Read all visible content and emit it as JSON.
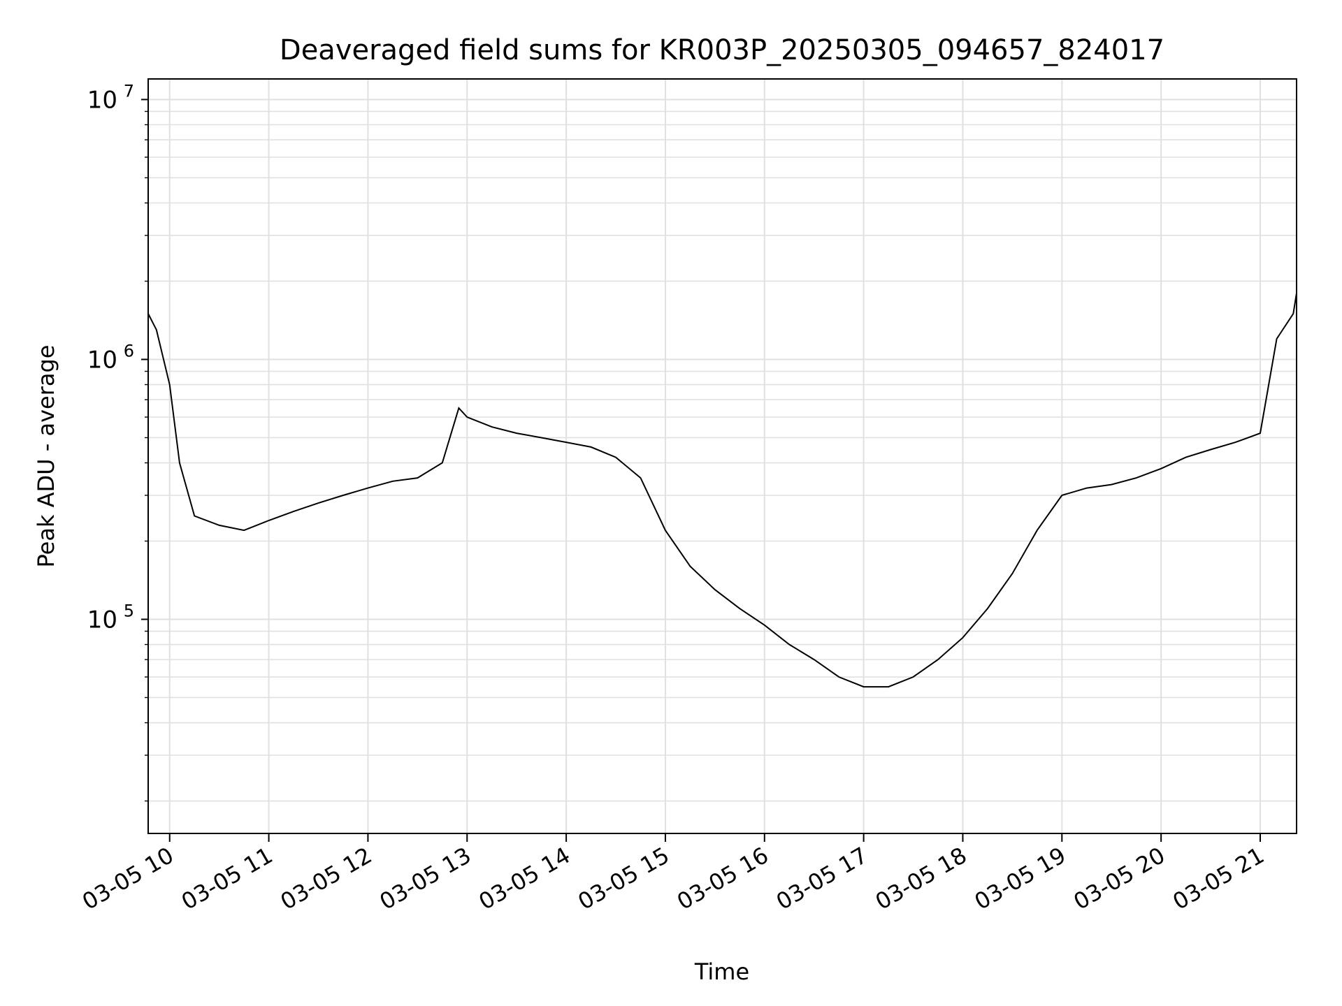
{
  "chart_data": {
    "type": "line",
    "title": "Deaveraged field sums for KR003P_20250305_094657_824017",
    "xlabel": "Time",
    "ylabel": "Peak ADU - average",
    "x_type": "time",
    "x_range": [
      "2025-03-05T09:47",
      "2025-03-05T21:22"
    ],
    "x_ticks": [
      {
        "t": "2025-03-05T10:00",
        "label": "03-05 10"
      },
      {
        "t": "2025-03-05T11:00",
        "label": "03-05 11"
      },
      {
        "t": "2025-03-05T12:00",
        "label": "03-05 12"
      },
      {
        "t": "2025-03-05T13:00",
        "label": "03-05 13"
      },
      {
        "t": "2025-03-05T14:00",
        "label": "03-05 14"
      },
      {
        "t": "2025-03-05T15:00",
        "label": "03-05 15"
      },
      {
        "t": "2025-03-05T16:00",
        "label": "03-05 16"
      },
      {
        "t": "2025-03-05T17:00",
        "label": "03-05 17"
      },
      {
        "t": "2025-03-05T18:00",
        "label": "03-05 18"
      },
      {
        "t": "2025-03-05T19:00",
        "label": "03-05 19"
      },
      {
        "t": "2025-03-05T20:00",
        "label": "03-05 20"
      },
      {
        "t": "2025-03-05T21:00",
        "label": "03-05 21"
      }
    ],
    "y_scale": "log",
    "ylim": [
      15000,
      12000000
    ],
    "y_ticks": [
      {
        "value": 100000,
        "base": "10",
        "exp": "5"
      },
      {
        "value": 1000000,
        "base": "10",
        "exp": "6"
      },
      {
        "value": 10000000,
        "base": "10",
        "exp": "7"
      }
    ],
    "grid": true,
    "series": [
      {
        "color": "#000000",
        "x": [
          "2025-03-05T09:47",
          "2025-03-05T09:52",
          "2025-03-05T10:00",
          "2025-03-05T10:06",
          "2025-03-05T10:15",
          "2025-03-05T10:30",
          "2025-03-05T10:45",
          "2025-03-05T11:00",
          "2025-03-05T11:15",
          "2025-03-05T11:30",
          "2025-03-05T11:45",
          "2025-03-05T12:00",
          "2025-03-05T12:15",
          "2025-03-05T12:30",
          "2025-03-05T12:45",
          "2025-03-05T12:55",
          "2025-03-05T13:00",
          "2025-03-05T13:15",
          "2025-03-05T13:30",
          "2025-03-05T13:45",
          "2025-03-05T14:00",
          "2025-03-05T14:15",
          "2025-03-05T14:30",
          "2025-03-05T14:45",
          "2025-03-05T15:00",
          "2025-03-05T15:15",
          "2025-03-05T15:30",
          "2025-03-05T15:45",
          "2025-03-05T16:00",
          "2025-03-05T16:15",
          "2025-03-05T16:30",
          "2025-03-05T16:45",
          "2025-03-05T17:00",
          "2025-03-05T17:15",
          "2025-03-05T17:30",
          "2025-03-05T17:45",
          "2025-03-05T18:00",
          "2025-03-05T18:15",
          "2025-03-05T18:30",
          "2025-03-05T18:45",
          "2025-03-05T19:00",
          "2025-03-05T19:15",
          "2025-03-05T19:30",
          "2025-03-05T19:45",
          "2025-03-05T20:00",
          "2025-03-05T20:15",
          "2025-03-05T20:30",
          "2025-03-05T20:45",
          "2025-03-05T21:00",
          "2025-03-05T21:10",
          "2025-03-05T21:20",
          "2025-03-05T21:22"
        ],
        "y": [
          1500000,
          1300000,
          800000,
          400000,
          250000,
          230000,
          220000,
          240000,
          260000,
          280000,
          300000,
          320000,
          340000,
          350000,
          400000,
          650000,
          600000,
          550000,
          520000,
          500000,
          480000,
          460000,
          420000,
          350000,
          220000,
          160000,
          130000,
          110000,
          95000,
          80000,
          70000,
          60000,
          55000,
          55000,
          60000,
          70000,
          85000,
          110000,
          150000,
          220000,
          300000,
          320000,
          330000,
          350000,
          380000,
          420000,
          450000,
          480000,
          520000,
          1200000,
          1500000,
          1800000
        ]
      }
    ]
  }
}
